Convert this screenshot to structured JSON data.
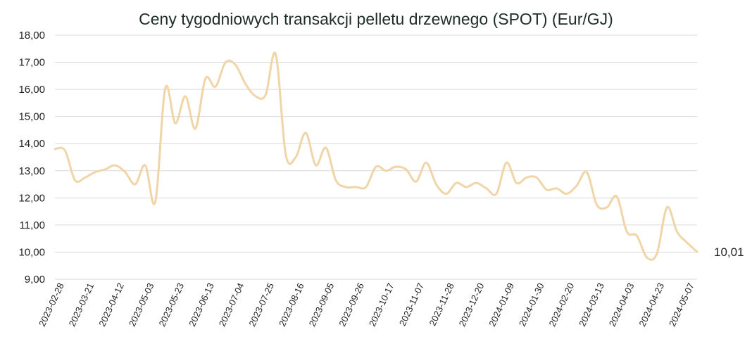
{
  "chart_data": {
    "type": "line",
    "title": "Ceny tygodniowych transakcji pelletu drzewnego (SPOT) (Eur/GJ)",
    "xlabel": "",
    "ylabel": "",
    "ylim": [
      9,
      18
    ],
    "y_ticks": [
      "9,00",
      "10,00",
      "11,00",
      "12,00",
      "13,00",
      "14,00",
      "15,00",
      "16,00",
      "17,00",
      "18,00"
    ],
    "x_tick_labels": [
      "2023-02-28",
      "2023-03-21",
      "2023-04-12",
      "2023-05-03",
      "2023-05-23",
      "2023-06-13",
      "2023-07-04",
      "2023-07-25",
      "2023-08-16",
      "2023-09-05",
      "2023-09-26",
      "2023-10-17",
      "2023-11-07",
      "2023-11-28",
      "2023-12-20",
      "2024-01-09",
      "2024-01-30",
      "2024-02-20",
      "2024-03-13",
      "2024-04-03",
      "2024-04-23",
      "2024-05-07"
    ],
    "grid": true,
    "legend": "none",
    "end_label": "10,01",
    "line_color": "#f0d5a8",
    "series": [
      {
        "values": [
          13.8,
          13.75,
          12.65,
          12.75,
          12.95,
          13.05,
          13.2,
          12.95,
          12.5,
          13.2,
          11.85,
          16.05,
          14.75,
          15.75,
          14.55,
          16.4,
          16.1,
          17.0,
          16.9,
          16.2,
          15.75,
          15.8,
          17.3,
          13.6,
          13.5,
          14.4,
          13.2,
          13.85,
          12.65,
          12.4,
          12.4,
          12.4,
          13.15,
          13.0,
          13.15,
          13.05,
          12.6,
          13.3,
          12.5,
          12.15,
          12.55,
          12.4,
          12.55,
          12.35,
          12.15,
          13.3,
          12.55,
          12.75,
          12.75,
          12.3,
          12.35,
          12.15,
          12.45,
          12.95,
          11.75,
          11.65,
          12.05,
          10.75,
          10.6,
          9.8,
          9.95,
          11.65,
          10.75,
          10.35,
          10.01
        ]
      }
    ]
  }
}
